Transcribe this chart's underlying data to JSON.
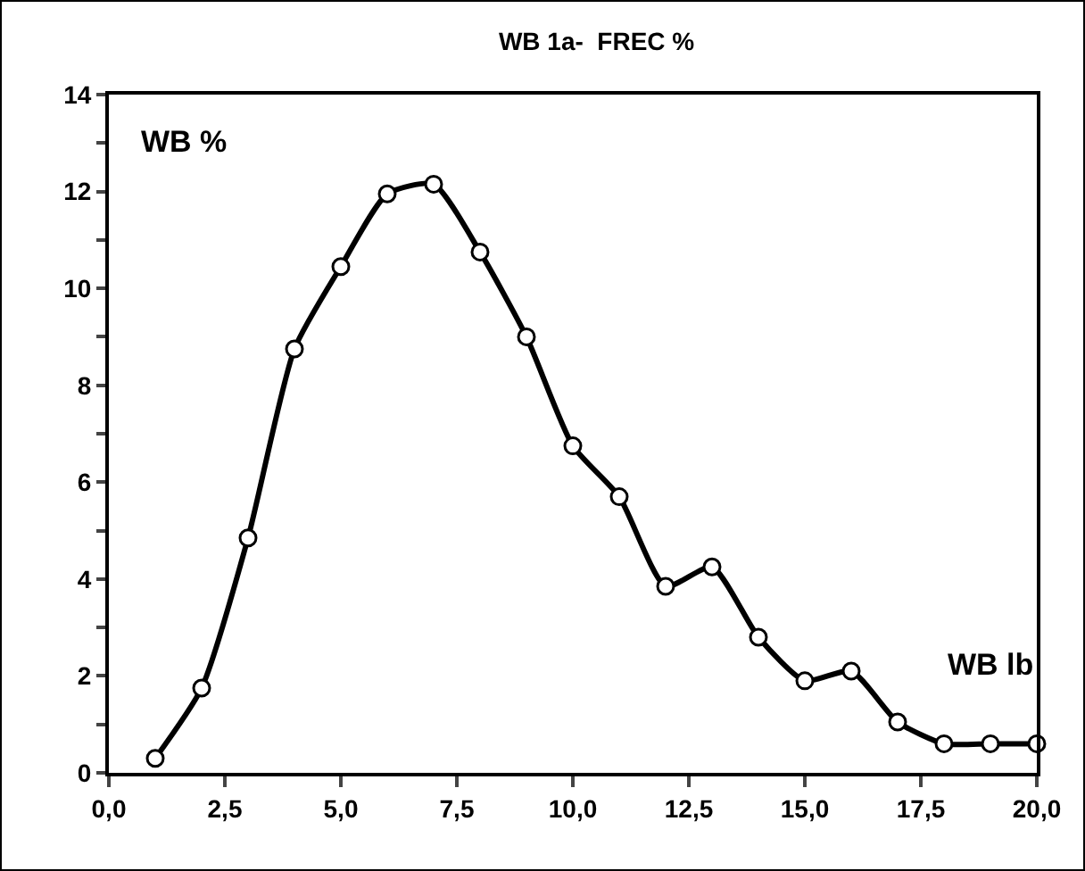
{
  "chart_data": {
    "type": "line",
    "title": "WB 1a-  FREC %",
    "annotations": [
      "WB %",
      "WB lb"
    ],
    "x": [
      1,
      2,
      3,
      4,
      5,
      6,
      7,
      8,
      9,
      10,
      11,
      12,
      13,
      14,
      15,
      16,
      17,
      18,
      19,
      20
    ],
    "series": [
      {
        "color": "#000000",
        "values": [
          0.3,
          1.75,
          4.85,
          8.75,
          10.45,
          11.95,
          12.15,
          10.75,
          9.0,
          6.75,
          5.7,
          3.85,
          4.25,
          2.8,
          1.9,
          2.1,
          1.05,
          0.6,
          0.6,
          0.6
        ]
      }
    ],
    "xlim": [
      0,
      20
    ],
    "xticks": [
      {
        "value": 0,
        "label": "0,0"
      },
      {
        "value": 2.5,
        "label": "2,5"
      },
      {
        "value": 5,
        "label": "5,0"
      },
      {
        "value": 7.5,
        "label": "7,5"
      },
      {
        "value": 10,
        "label": "10,0"
      },
      {
        "value": 12.5,
        "label": "12,5"
      },
      {
        "value": 15,
        "label": "15,0"
      },
      {
        "value": 17.5,
        "label": "17,5"
      },
      {
        "value": 20,
        "label": "20,0"
      }
    ],
    "ylim": [
      0,
      14
    ],
    "yticks": [
      0,
      {
        "value": 1,
        "label": null
      },
      2,
      {
        "value": 3,
        "label": null
      },
      4,
      {
        "value": 5,
        "label": null
      },
      6,
      {
        "value": 7,
        "label": null
      },
      8,
      {
        "value": 9,
        "label": null
      },
      10,
      {
        "value": 11,
        "label": null
      },
      12,
      {
        "value": 13,
        "label": null
      },
      14
    ],
    "grid": false,
    "marker": "circle",
    "line_style": "solid"
  }
}
